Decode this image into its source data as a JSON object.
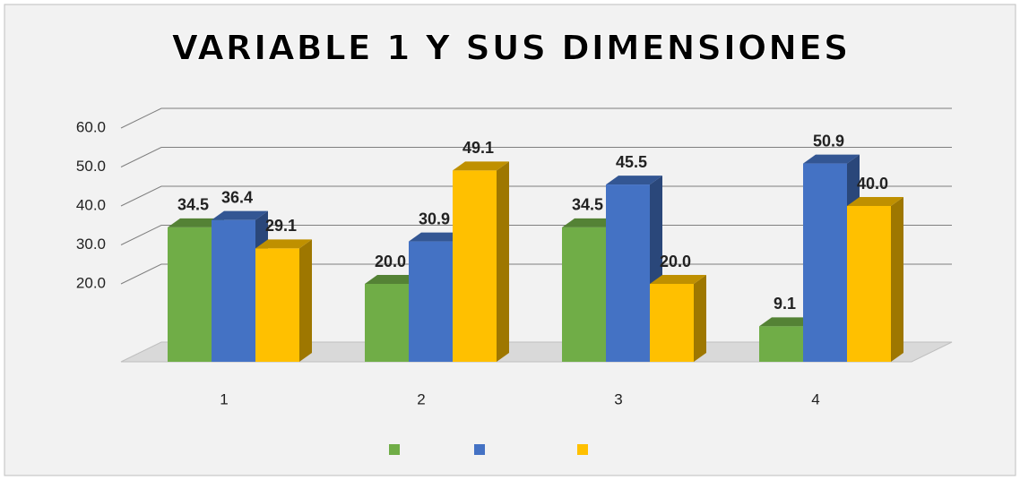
{
  "chart_data": {
    "type": "bar3d",
    "title": "VARIABLE 1 Y SUS DIMENSIONES",
    "categories": [
      "1",
      "2",
      "3",
      "4"
    ],
    "series": [
      {
        "color": "#70ad47",
        "values": [
          34.5,
          20.0,
          34.5,
          9.1
        ],
        "value_labels": [
          "34.5",
          "20.0",
          "34.5",
          "9.1"
        ]
      },
      {
        "color": "#4472c4",
        "values": [
          36.4,
          30.9,
          45.5,
          50.9
        ],
        "value_labels": [
          "36.4",
          "30.9",
          "45.5",
          "50.9"
        ]
      },
      {
        "color": "#ffc000",
        "values": [
          29.1,
          49.1,
          20.0,
          40.0
        ],
        "value_labels": [
          "29.1",
          "49.1",
          "20.0",
          "40.0"
        ]
      }
    ],
    "ylim": [
      0,
      60
    ],
    "yticks": [
      {
        "value": 20,
        "label": "20.0"
      },
      {
        "value": 30,
        "label": "30.0"
      },
      {
        "value": 40,
        "label": "40.0"
      },
      {
        "value": 50,
        "label": "50.0"
      },
      {
        "value": 60,
        "label": "60.0"
      }
    ],
    "grid": true
  }
}
